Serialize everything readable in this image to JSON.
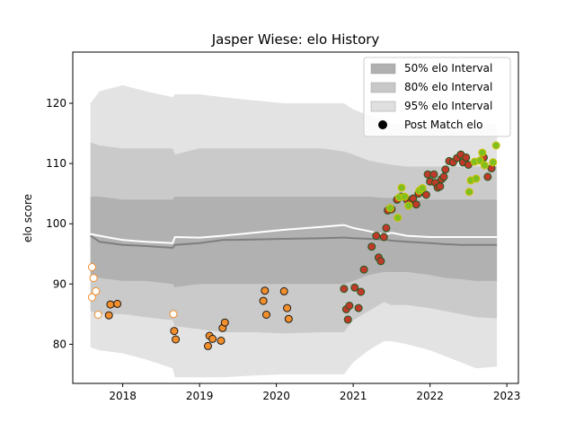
{
  "chart_data": {
    "type": "scatter",
    "title": "Jasper Wiese: elo History",
    "xlabel": "",
    "ylabel": "elo score",
    "xlim": [
      2017.35,
      2023.15
    ],
    "ylim": [
      73.5,
      128.5
    ],
    "x_ticks": [
      "2018",
      "2019",
      "2020",
      "2021",
      "2022",
      "2023"
    ],
    "y_ticks": [
      "80",
      "90",
      "100",
      "110",
      "120"
    ],
    "legend_position": "top-right",
    "legend": [
      {
        "label": "50% elo Interval",
        "kind": "patch",
        "color": "#b0b0b0"
      },
      {
        "label": "80% elo Interval",
        "kind": "patch",
        "color": "#c8c8c8"
      },
      {
        "label": "95% elo Interval",
        "kind": "patch",
        "color": "#e0e0e0"
      },
      {
        "label": "Post Match elo",
        "kind": "marker",
        "color": "#000000"
      }
    ],
    "band_colors": {
      "p95": "#e3e3e3",
      "p80": "#cacaca",
      "p50": "#b1b1b1"
    },
    "mean_line_color": "#7f7f7f",
    "median_line_color": "#ffffff",
    "bands": {
      "x": [
        2017.58,
        2017.7,
        2018.0,
        2018.3,
        2018.65,
        2018.68,
        2019.0,
        2019.3,
        2019.7,
        2020.1,
        2020.6,
        2020.88,
        2021.0,
        2021.2,
        2021.4,
        2021.5,
        2021.7,
        2022.0,
        2022.2,
        2022.4,
        2022.6,
        2022.87
      ],
      "p95_low": [
        79.5,
        79.0,
        78.5,
        77.5,
        76.0,
        74.5,
        74.5,
        74.5,
        74.8,
        75.0,
        75.0,
        75.0,
        77.0,
        79.0,
        80.5,
        80.5,
        80.0,
        79.0,
        78.0,
        77.0,
        76.0,
        76.3
      ],
      "p95_high": [
        120.0,
        122.0,
        123.0,
        122.0,
        121.0,
        121.5,
        121.5,
        121.0,
        120.5,
        120.0,
        120.0,
        120.0,
        119.0,
        118.0,
        117.5,
        116.5,
        116.5,
        116.5,
        116.5,
        116.5,
        116.5,
        116.5
      ],
      "p80_low": [
        85.5,
        85.0,
        85.0,
        84.5,
        84.0,
        83.0,
        82.5,
        82.0,
        82.0,
        81.8,
        82.0,
        82.0,
        84.0,
        85.5,
        87.0,
        86.5,
        86.5,
        86.0,
        85.5,
        85.0,
        84.5,
        84.3
      ],
      "p80_high": [
        113.5,
        113.0,
        112.5,
        112.5,
        112.5,
        111.5,
        112.5,
        112.5,
        112.5,
        112.5,
        112.5,
        112.0,
        111.5,
        110.5,
        110.0,
        109.8,
        109.5,
        109.5,
        109.5,
        109.5,
        109.5,
        109.5
      ],
      "p50_low": [
        91.5,
        91.0,
        90.5,
        90.5,
        90.0,
        89.5,
        90.0,
        90.0,
        90.0,
        90.0,
        90.0,
        90.0,
        90.5,
        91.5,
        92.0,
        92.0,
        92.0,
        91.5,
        91.0,
        90.8,
        90.5,
        90.5
      ],
      "p50_high": [
        104.5,
        104.5,
        104.0,
        104.0,
        104.0,
        104.5,
        104.5,
        104.5,
        104.5,
        104.5,
        104.5,
        104.5,
        104.5,
        104.5,
        104.3,
        104.3,
        104.0,
        104.0,
        104.0,
        104.0,
        104.0,
        104.0
      ],
      "mean": [
        98.0,
        97.0,
        96.5,
        96.3,
        96.0,
        96.5,
        96.8,
        97.3,
        97.4,
        97.5,
        97.6,
        97.7,
        97.6,
        97.5,
        97.4,
        97.2,
        97.0,
        96.8,
        96.6,
        96.5,
        96.5,
        96.5
      ],
      "median": [
        98.3,
        98.0,
        97.3,
        97.0,
        96.8,
        97.8,
        97.7,
        98.0,
        98.5,
        99.0,
        99.5,
        99.8,
        99.3,
        98.8,
        98.2,
        98.5,
        98.0,
        97.8,
        97.8,
        97.8,
        97.8,
        97.8
      ]
    },
    "series": [
      {
        "style": "hollow",
        "points": [
          [
            2017.6,
            92.8
          ],
          [
            2017.62,
            91.0
          ],
          [
            2017.6,
            87.8
          ],
          [
            2017.65,
            88.8
          ],
          [
            2017.68,
            84.9
          ],
          [
            2018.66,
            85.0
          ]
        ]
      },
      {
        "style": "orange",
        "points": [
          [
            2017.84,
            86.6
          ],
          [
            2017.93,
            86.7
          ],
          [
            2017.82,
            84.8
          ],
          [
            2018.67,
            82.2
          ],
          [
            2018.69,
            80.8
          ],
          [
            2019.11,
            79.7
          ],
          [
            2019.13,
            81.4
          ],
          [
            2019.17,
            80.9
          ],
          [
            2019.28,
            80.6
          ],
          [
            2019.3,
            82.7
          ],
          [
            2019.33,
            83.6
          ],
          [
            2019.83,
            87.2
          ],
          [
            2019.85,
            88.9
          ],
          [
            2019.87,
            84.9
          ],
          [
            2020.1,
            88.8
          ],
          [
            2020.14,
            86.0
          ],
          [
            2020.16,
            84.2
          ]
        ]
      },
      {
        "style": "red",
        "points": [
          [
            2020.88,
            89.2
          ],
          [
            2020.91,
            85.8
          ],
          [
            2020.93,
            84.1
          ],
          [
            2020.95,
            86.4
          ],
          [
            2021.02,
            89.4
          ],
          [
            2021.07,
            86.0
          ],
          [
            2021.1,
            88.7
          ],
          [
            2021.14,
            92.4
          ],
          [
            2021.24,
            96.2
          ],
          [
            2021.3,
            98.0
          ],
          [
            2021.33,
            94.4
          ],
          [
            2021.36,
            93.8
          ],
          [
            2021.4,
            97.8
          ],
          [
            2021.43,
            99.3
          ],
          [
            2021.45,
            102.2
          ],
          [
            2021.5,
            102.4
          ],
          [
            2021.57,
            104.0
          ],
          [
            2021.62,
            104.5
          ],
          [
            2021.7,
            104.0
          ],
          [
            2021.75,
            103.6
          ],
          [
            2021.78,
            104.2
          ],
          [
            2021.82,
            103.2
          ],
          [
            2021.85,
            105.0
          ],
          [
            2021.9,
            105.8
          ],
          [
            2021.95,
            104.8
          ],
          [
            2022.0,
            107.0
          ],
          [
            2021.97,
            108.2
          ],
          [
            2022.05,
            108.2
          ],
          [
            2022.07,
            106.8
          ],
          [
            2022.1,
            106.0
          ],
          [
            2022.13,
            106.2
          ],
          [
            2022.15,
            107.4
          ],
          [
            2022.18,
            107.8
          ],
          [
            2022.2,
            109.0
          ],
          [
            2022.25,
            110.4
          ],
          [
            2022.3,
            110.2
          ],
          [
            2022.35,
            110.9
          ],
          [
            2022.4,
            111.5
          ],
          [
            2022.43,
            110.2
          ],
          [
            2022.47,
            111.0
          ],
          [
            2022.5,
            109.8
          ],
          [
            2022.7,
            111.0
          ],
          [
            2022.75,
            107.8
          ],
          [
            2022.8,
            109.2
          ]
        ]
      },
      {
        "style": "green",
        "points": [
          [
            2021.48,
            102.6
          ],
          [
            2021.58,
            101.0
          ],
          [
            2021.6,
            104.4
          ],
          [
            2021.63,
            106.0
          ],
          [
            2021.67,
            104.5
          ],
          [
            2021.72,
            103.0
          ],
          [
            2021.86,
            105.5
          ],
          [
            2021.9,
            105.9
          ],
          [
            2022.51,
            105.3
          ],
          [
            2022.53,
            107.2
          ],
          [
            2022.6,
            107.5
          ],
          [
            2022.58,
            110.3
          ],
          [
            2022.65,
            110.5
          ],
          [
            2022.68,
            111.8
          ],
          [
            2022.71,
            109.7
          ],
          [
            2022.82,
            110.2
          ],
          [
            2022.86,
            113.0
          ]
        ]
      }
    ]
  },
  "palette": {
    "hollow": {
      "fill": "#ffffff",
      "stroke": "#f28e2b"
    },
    "orange": {
      "fill": "#f28e2b",
      "stroke": "#1a1a1a"
    },
    "red": {
      "fill": "#c0392b",
      "stroke": "#1e5b1e"
    },
    "green": {
      "fill": "#7fbf1f",
      "stroke": "#d4c200"
    }
  }
}
